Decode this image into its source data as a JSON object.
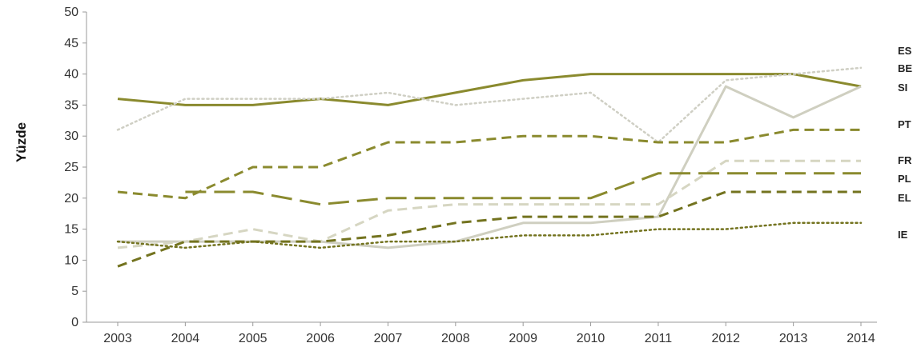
{
  "chart_data": {
    "type": "line",
    "title": "",
    "xlabel": "",
    "ylabel": "Yüzde",
    "x": [
      2003,
      2004,
      2005,
      2006,
      2007,
      2008,
      2009,
      2010,
      2011,
      2012,
      2013,
      2014
    ],
    "ylim": [
      0,
      50
    ],
    "yticks": [
      0,
      5,
      10,
      15,
      20,
      25,
      30,
      35,
      40,
      45,
      50
    ],
    "grid": false,
    "legend": "right",
    "series": [
      {
        "name": "ES",
        "color": "#8a8a2e",
        "style": "solid",
        "values": [
          36,
          35,
          35,
          36,
          35,
          37,
          39,
          40,
          40,
          40,
          40,
          38
        ]
      },
      {
        "name": "BE",
        "color": "#cfcfc4",
        "style": "dotted",
        "values": [
          31,
          36,
          36,
          36,
          37,
          35,
          36,
          37,
          29,
          39,
          40,
          41
        ]
      },
      {
        "name": "SI",
        "color": "#cfcfc0",
        "style": "solid",
        "values": [
          13,
          13,
          13,
          13,
          12,
          13,
          16,
          16,
          17,
          38,
          33,
          38
        ]
      },
      {
        "name": "PT",
        "color": "#8a8a2e",
        "style": "dashed",
        "values": [
          21,
          20,
          25,
          25,
          29,
          29,
          30,
          30,
          29,
          29,
          31,
          31
        ]
      },
      {
        "name": "FR",
        "color": "#d6d6c2",
        "style": "dashed",
        "values": [
          12,
          13,
          15,
          13,
          18,
          19,
          19,
          19,
          19,
          26,
          26,
          26
        ]
      },
      {
        "name": "PL",
        "color": "#8a8a2e",
        "style": "long-dashed",
        "values": [
          null,
          21,
          21,
          19,
          20,
          20,
          20,
          20,
          24,
          24,
          24,
          24
        ]
      },
      {
        "name": "EL",
        "color": "#73731f",
        "style": "dashed",
        "values": [
          9,
          13,
          13,
          13,
          14,
          16,
          17,
          17,
          17,
          21,
          21,
          21
        ]
      },
      {
        "name": "IE",
        "color": "#73731f",
        "style": "dotted",
        "values": [
          13,
          12,
          13,
          12,
          13,
          13,
          14,
          14,
          15,
          15,
          16,
          16
        ]
      }
    ]
  }
}
